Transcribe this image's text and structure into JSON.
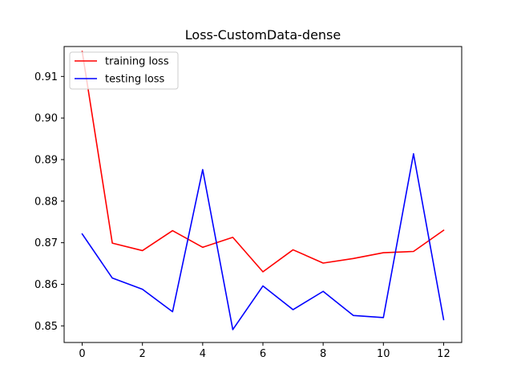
{
  "chart_data": {
    "type": "line",
    "title": "Loss-CustomData-dense",
    "xlabel": "",
    "ylabel": "",
    "x": [
      0,
      1,
      2,
      3,
      4,
      5,
      6,
      7,
      8,
      9,
      10,
      11,
      12
    ],
    "xlim": [
      -0.6,
      12.6
    ],
    "ylim": [
      0.846,
      0.9172
    ],
    "xticks": [
      0,
      2,
      4,
      6,
      8,
      10,
      12
    ],
    "yticks": [
      0.85,
      0.86,
      0.87,
      0.88,
      0.89,
      0.9,
      0.91
    ],
    "grid": false,
    "legend_position": "top-left",
    "series": [
      {
        "name": "training loss",
        "color": "#ff0000",
        "values": [
          0.916,
          0.8699,
          0.8681,
          0.8729,
          0.8689,
          0.8713,
          0.863,
          0.8683,
          0.8651,
          0.8662,
          0.8676,
          0.8679,
          0.873
        ]
      },
      {
        "name": "testing loss",
        "color": "#0000ff",
        "values": [
          0.8721,
          0.8615,
          0.8588,
          0.8534,
          0.8876,
          0.8491,
          0.8596,
          0.8539,
          0.8583,
          0.8525,
          0.852,
          0.8914,
          0.8515
        ]
      }
    ]
  }
}
